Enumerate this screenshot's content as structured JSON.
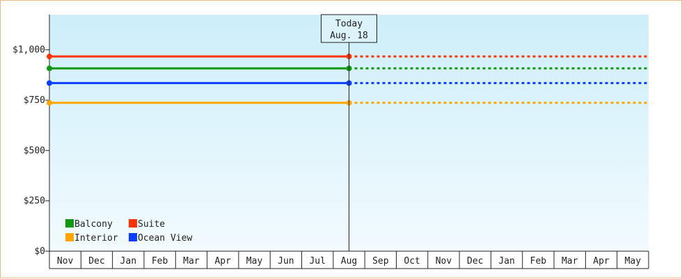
{
  "chart_data": {
    "type": "line",
    "categories": [
      "Nov",
      "Dec",
      "Jan",
      "Feb",
      "Mar",
      "Apr",
      "May",
      "Jun",
      "Jul",
      "Aug",
      "Sep",
      "Oct",
      "Nov",
      "Dec",
      "Jan",
      "Feb",
      "Mar",
      "Apr",
      "May"
    ],
    "ylim": [
      0,
      1175
    ],
    "yticks": [
      {
        "value": 0,
        "label": "$0"
      },
      {
        "value": 250,
        "label": "$250"
      },
      {
        "value": 500,
        "label": "$500"
      },
      {
        "value": 750,
        "label": "$750"
      },
      {
        "value": 1000,
        "label": "$1,000"
      }
    ],
    "today": {
      "label_line1": "Today",
      "label_line2": "Aug. 18",
      "index": 9
    },
    "series": [
      {
        "name": "Suite",
        "color": "#ff3300",
        "value": 967
      },
      {
        "name": "Balcony",
        "color": "#109910",
        "value": 908
      },
      {
        "name": "Ocean View",
        "color": "#0b3dff",
        "value": 835
      },
      {
        "name": "Interior",
        "color": "#ffa500",
        "value": 737
      }
    ],
    "legend_order": [
      "Balcony",
      "Suite",
      "Interior",
      "Ocean View"
    ],
    "legend_position": "bottom-left",
    "line_style": {
      "past": "solid",
      "future": "dotted"
    },
    "background_gradient": [
      "#cdeefa",
      "#f2fbfe"
    ]
  }
}
